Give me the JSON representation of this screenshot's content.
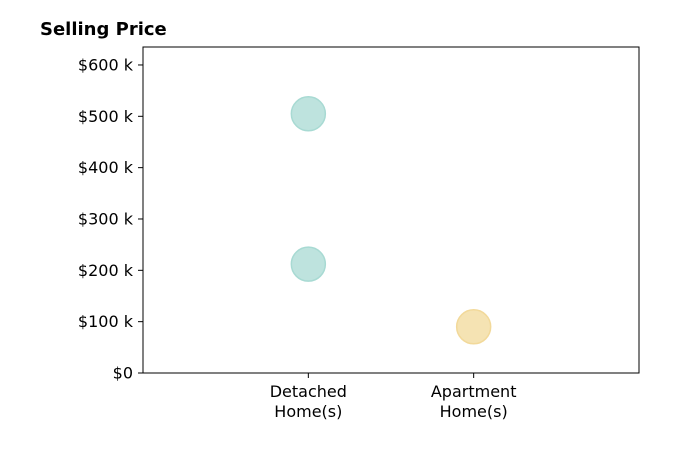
{
  "chart_data": {
    "type": "scatter",
    "title": "Selling Price",
    "xlabel": "",
    "ylabel": "",
    "categories": [
      "Detached\nHome(s)",
      "Apartment\nHome(s)"
    ],
    "y_ticks": [
      {
        "value": 0,
        "label": "$0"
      },
      {
        "value": 100000,
        "label": "$100 k"
      },
      {
        "value": 200000,
        "label": "$200 k"
      },
      {
        "value": 300000,
        "label": "$300 k"
      },
      {
        "value": 400000,
        "label": "$400 k"
      },
      {
        "value": 500000,
        "label": "$500 k"
      },
      {
        "value": 600000,
        "label": "$600 k"
      }
    ],
    "ylim": [
      0,
      635000
    ],
    "xlim": [
      -1,
      2
    ],
    "grid": false,
    "points": [
      {
        "category": "Detached\nHome(s)",
        "y": 505000,
        "color": "#a8dad3"
      },
      {
        "category": "Detached\nHome(s)",
        "y": 212000,
        "color": "#a8dad3"
      },
      {
        "category": "Apartment\nHome(s)",
        "y": 90000,
        "color": "#f2d99a"
      }
    ]
  }
}
